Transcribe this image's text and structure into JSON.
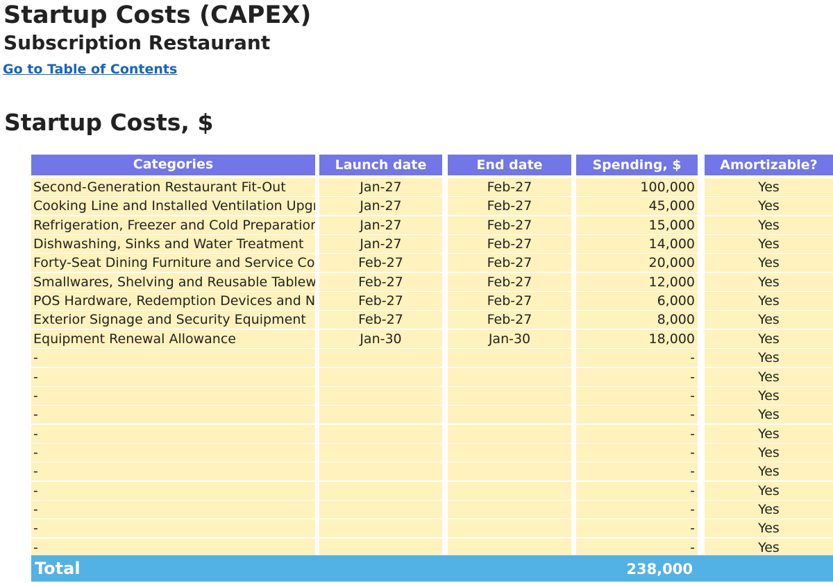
{
  "header": {
    "title": "Startup Costs (CAPEX)",
    "subtitle": "Subscription Restaurant",
    "toc_link": "Go to Table of Contents",
    "section_title": "Startup Costs, $"
  },
  "colors": {
    "header_bg": "#7276e6",
    "row_bg": "#fff2bc",
    "total_bg": "#52b2e6",
    "link": "#1565c0"
  },
  "table": {
    "columns": [
      "Categories",
      "Launch date",
      "End date",
      "Spending, $",
      "Amortizable?"
    ],
    "rows": [
      {
        "category": "Second-Generation Restaurant Fit-Out",
        "launch": "Jan-27",
        "end": "Feb-27",
        "spending": "100,000",
        "amortizable": "Yes"
      },
      {
        "category": "Cooking Line and Installed Ventilation Upgrades",
        "launch": "Jan-27",
        "end": "Feb-27",
        "spending": "45,000",
        "amortizable": "Yes"
      },
      {
        "category": "Refrigeration, Freezer and Cold Preparation",
        "launch": "Jan-27",
        "end": "Feb-27",
        "spending": "15,000",
        "amortizable": "Yes"
      },
      {
        "category": "Dishwashing, Sinks and Water Treatment",
        "launch": "Jan-27",
        "end": "Feb-27",
        "spending": "14,000",
        "amortizable": "Yes"
      },
      {
        "category": "Forty-Seat Dining Furniture and Service Counter",
        "launch": "Feb-27",
        "end": "Feb-27",
        "spending": "20,000",
        "amortizable": "Yes"
      },
      {
        "category": "Smallwares, Shelving and Reusable Tableware",
        "launch": "Feb-27",
        "end": "Feb-27",
        "spending": "12,000",
        "amortizable": "Yes"
      },
      {
        "category": "POS Hardware, Redemption Devices and Network",
        "launch": "Feb-27",
        "end": "Feb-27",
        "spending": "6,000",
        "amortizable": "Yes"
      },
      {
        "category": "Exterior Signage and Security Equipment",
        "launch": "Feb-27",
        "end": "Feb-27",
        "spending": "8,000",
        "amortizable": "Yes"
      },
      {
        "category": "Equipment Renewal Allowance",
        "launch": "Jan-30",
        "end": "Jan-30",
        "spending": "18,000",
        "amortizable": "Yes"
      },
      {
        "category": "-",
        "launch": "",
        "end": "",
        "spending": "-",
        "amortizable": "Yes"
      },
      {
        "category": "-",
        "launch": "",
        "end": "",
        "spending": "-",
        "amortizable": "Yes"
      },
      {
        "category": "-",
        "launch": "",
        "end": "",
        "spending": "-",
        "amortizable": "Yes"
      },
      {
        "category": "-",
        "launch": "",
        "end": "",
        "spending": "-",
        "amortizable": "Yes"
      },
      {
        "category": "-",
        "launch": "",
        "end": "",
        "spending": "-",
        "amortizable": "Yes"
      },
      {
        "category": "-",
        "launch": "",
        "end": "",
        "spending": "-",
        "amortizable": "Yes"
      },
      {
        "category": "-",
        "launch": "",
        "end": "",
        "spending": "-",
        "amortizable": "Yes"
      },
      {
        "category": "-",
        "launch": "",
        "end": "",
        "spending": "-",
        "amortizable": "Yes"
      },
      {
        "category": "-",
        "launch": "",
        "end": "",
        "spending": "-",
        "amortizable": "Yes"
      },
      {
        "category": "-",
        "launch": "",
        "end": "",
        "spending": "-",
        "amortizable": "Yes"
      },
      {
        "category": "-",
        "launch": "",
        "end": "",
        "spending": "-",
        "amortizable": "Yes"
      }
    ],
    "total": {
      "label": "Total",
      "spending": "238,000"
    }
  }
}
